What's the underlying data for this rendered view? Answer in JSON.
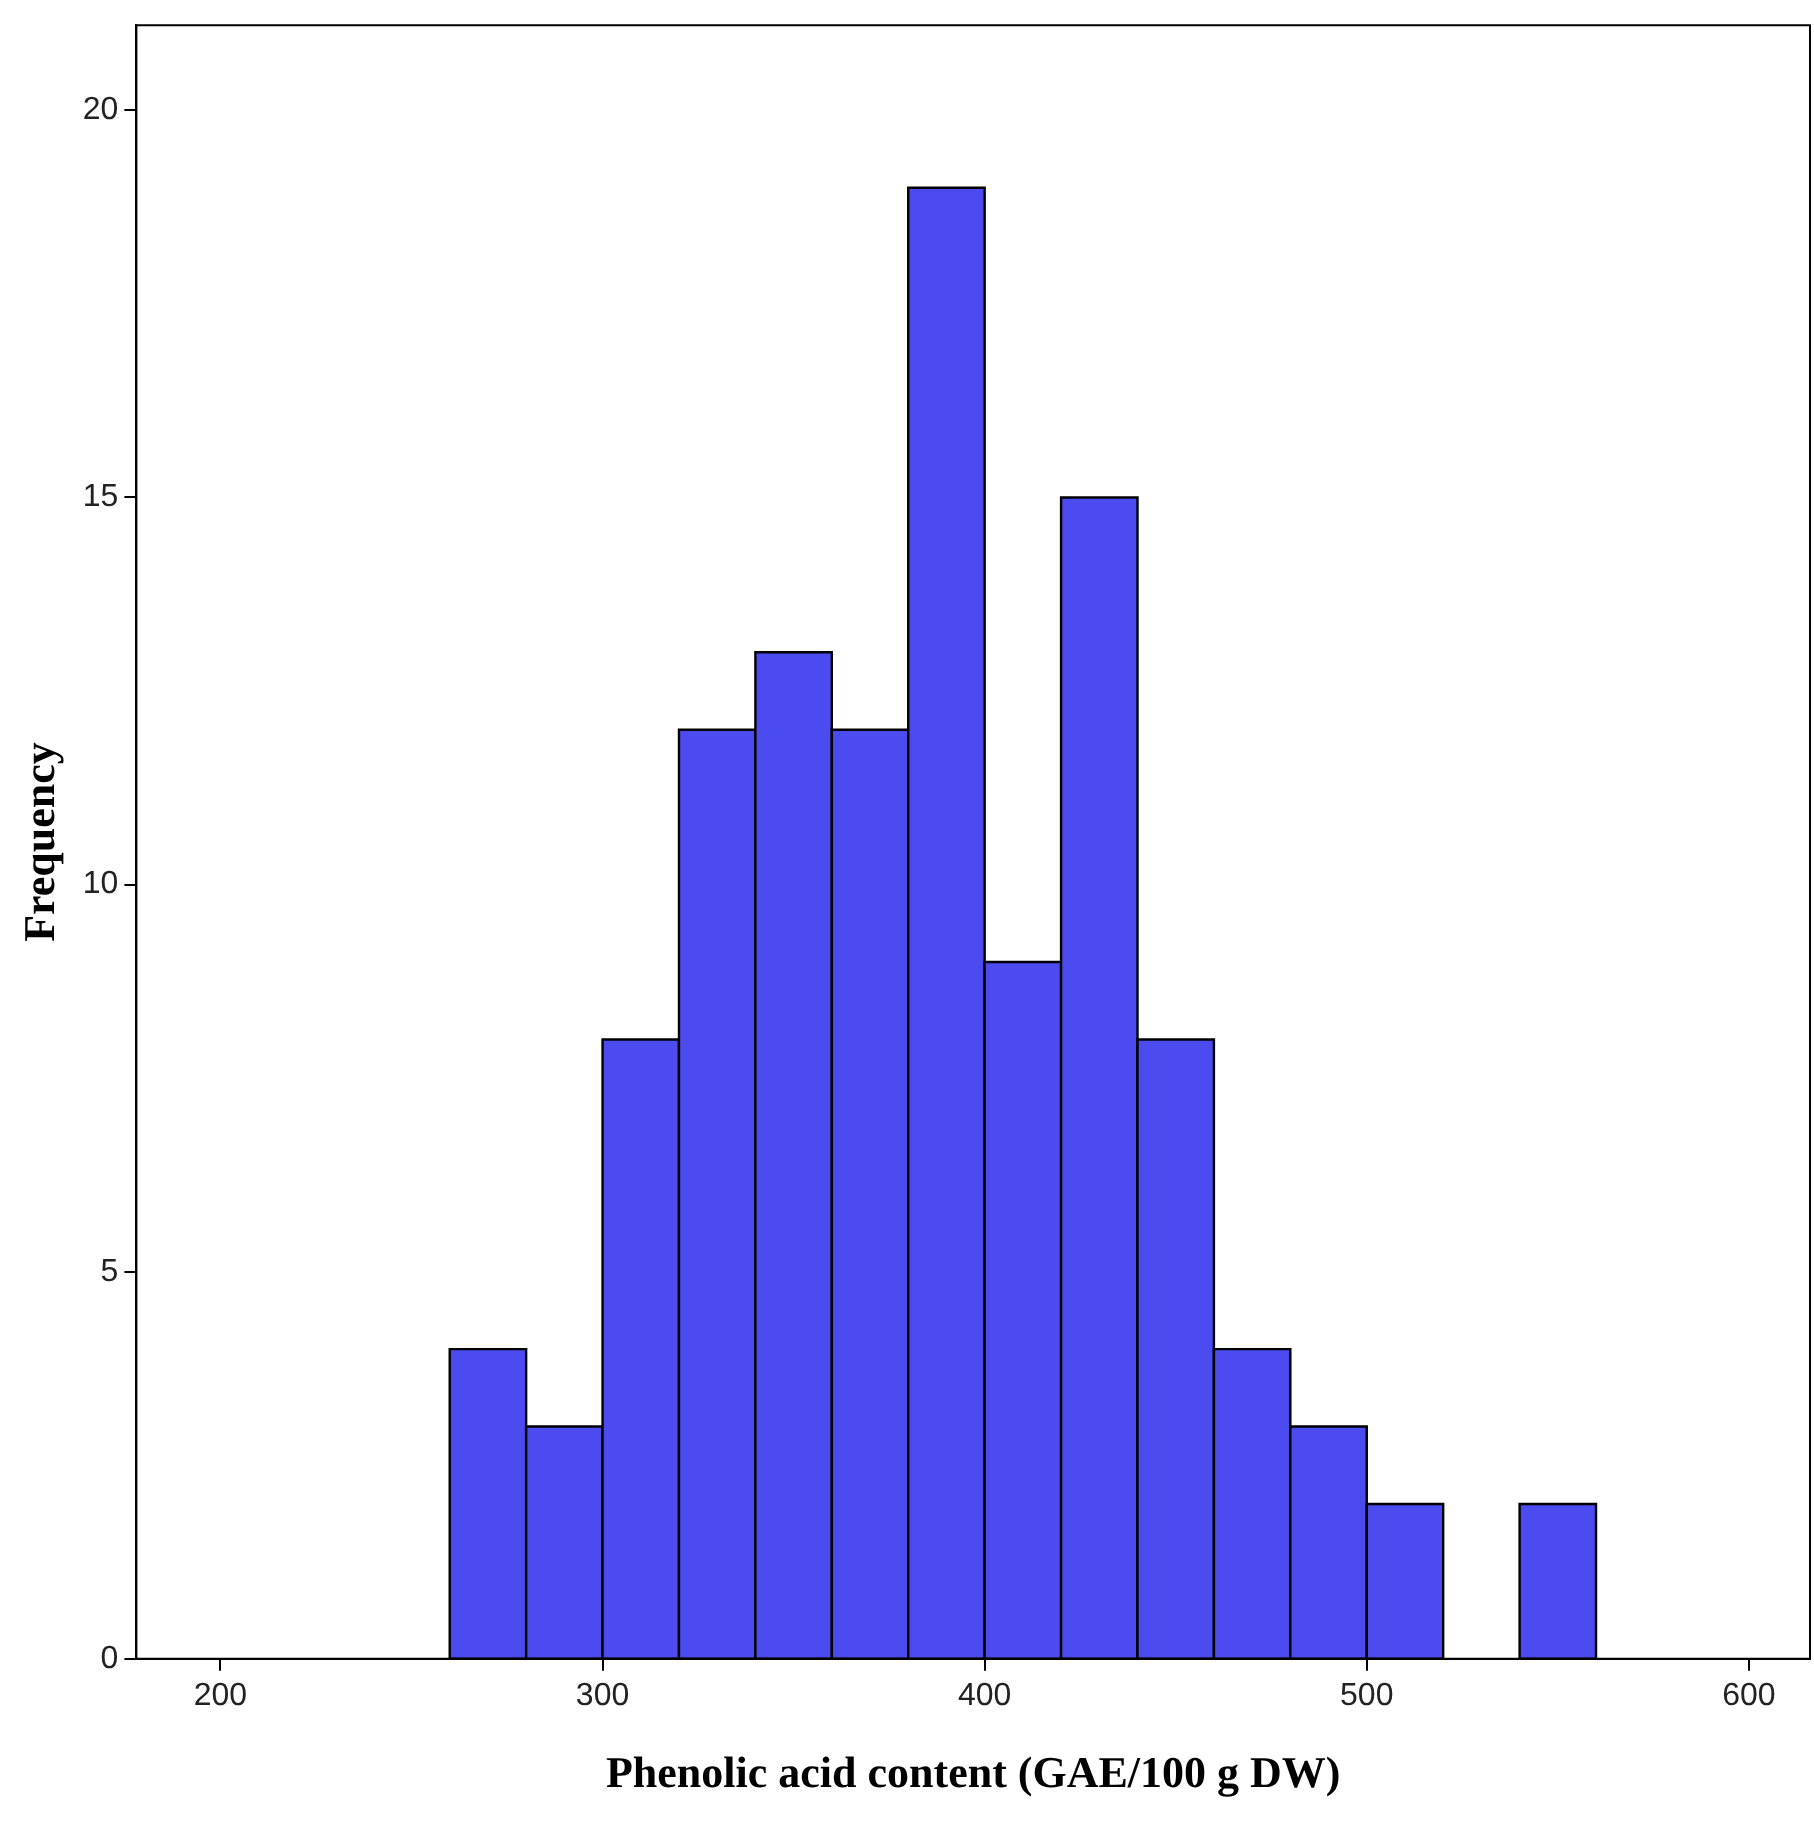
{
  "chart_data": {
    "type": "histogram",
    "xlabel": "Phenolic acid content (GAE/100 g DW)",
    "ylabel": "Frequency",
    "bins": [
      260,
      280,
      300,
      320,
      340,
      360,
      380,
      400,
      420,
      440,
      460,
      480,
      500,
      520,
      540,
      560
    ],
    "values": [
      4,
      3,
      8,
      12,
      13,
      12,
      19,
      9,
      15,
      8,
      4,
      3,
      2,
      0,
      2
    ],
    "color": "#4b4bf0",
    "xlim": [
      178,
      616
    ],
    "xticks": [
      200,
      300,
      400,
      500,
      600
    ],
    "ylim": [
      0,
      21.1
    ],
    "yticks": [
      0,
      5,
      10,
      15,
      20
    ],
    "grid": false,
    "legend": false
  }
}
